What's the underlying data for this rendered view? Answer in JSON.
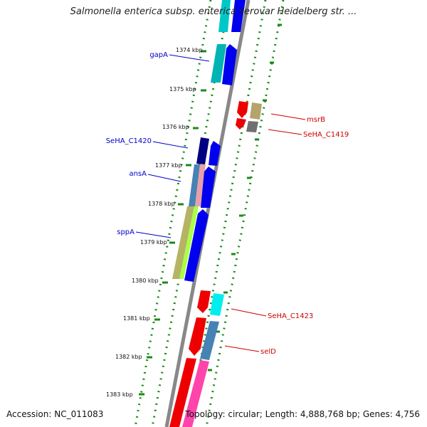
{
  "title": "Salmonella enterica subsp. enterica serovar Heidelberg str. ...",
  "accession_text": "Accession: NC_011083",
  "topology_text": "Topology: circular; Length: 4,888,768 bp; Genes: 4,756",
  "ticks": [
    "1374 kbp",
    "1375 kbp",
    "1376 kbp",
    "1377 kbp",
    "1378 kbp",
    "1379 kbp",
    "1380 kbp",
    "1381 kbp",
    "1382 kbp",
    "1383 kbp"
  ],
  "gene_labels": {
    "left": [
      "gapA",
      "SeHA_C1420",
      "ansA",
      "sppA"
    ],
    "right": [
      "msrB",
      "SeHA_C1419",
      "SeHA_C1423",
      "selD"
    ]
  },
  "colors": {
    "left_label": "#0000cc",
    "right_label": "#cc0000",
    "backbone": "#888888",
    "dotted_track": "#1a8a1a"
  }
}
